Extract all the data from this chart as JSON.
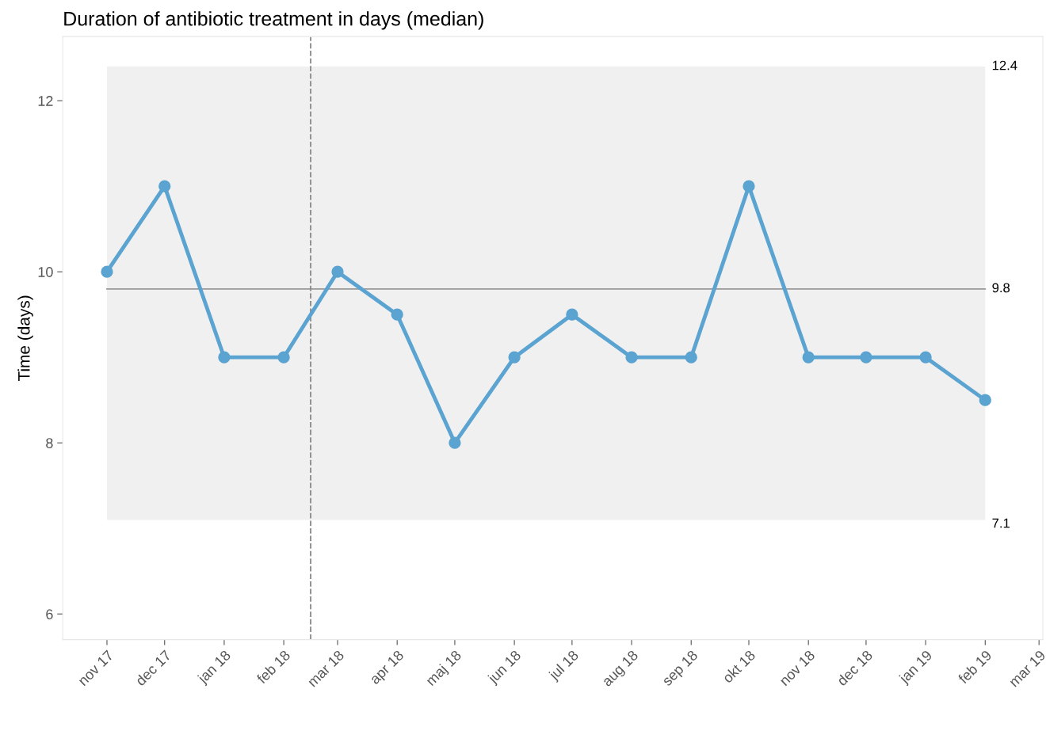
{
  "chart_data": {
    "type": "line",
    "title": "Duration of antibiotic treatment in days (median)",
    "ylabel": "Time (days)",
    "x": [
      "2017-11",
      "2017-12",
      "2018-01",
      "2018-02",
      "2018-03",
      "2018-04",
      "2018-05",
      "2018-06",
      "2018-07",
      "2018-08",
      "2018-09",
      "2018-10",
      "2018-11",
      "2018-12",
      "2019-01",
      "2019-02"
    ],
    "series": [
      {
        "color": "#5ba3d0",
        "values": [
          10,
          11,
          9,
          9,
          10,
          9.5,
          8,
          9,
          9.5,
          9,
          9,
          11,
          9,
          9,
          9,
          8.5
        ]
      }
    ],
    "xlim": [
      "2017-10-09",
      "2019-03-03"
    ],
    "xticks": [
      {
        "value": "2017-11",
        "label": "nov 17"
      },
      {
        "value": "2017-12",
        "label": "dec 17"
      },
      {
        "value": "2018-01",
        "label": "jan 18"
      },
      {
        "value": "2018-02",
        "label": "feb 18"
      },
      {
        "value": "2018-03",
        "label": "mar 18"
      },
      {
        "value": "2018-04",
        "label": "apr 18"
      },
      {
        "value": "2018-05",
        "label": "maj 18"
      },
      {
        "value": "2018-06",
        "label": "jun 18"
      },
      {
        "value": "2018-07",
        "label": "jul 18"
      },
      {
        "value": "2018-08",
        "label": "aug 18"
      },
      {
        "value": "2018-09",
        "label": "sep 18"
      },
      {
        "value": "2018-10",
        "label": "okt 18"
      },
      {
        "value": "2018-11",
        "label": "nov 18"
      },
      {
        "value": "2018-12",
        "label": "dec 18"
      },
      {
        "value": "2019-01",
        "label": "jan 19"
      },
      {
        "value": "2019-02",
        "label": "feb 19"
      },
      {
        "value": "2019-03",
        "label": "mar 19"
      }
    ],
    "ylim": [
      5.7,
      12.75
    ],
    "yticks": [
      6,
      8,
      10,
      12
    ],
    "ref_lines": [
      {
        "axis": "y",
        "value": 9.8,
        "label": "9.8",
        "color": "#999999",
        "line_style": "solid"
      },
      {
        "axis": "x",
        "value": "2018-02-15",
        "color": "#888888",
        "line_style": "dashed"
      }
    ],
    "bands": [
      {
        "axis": "y",
        "from": 7.1,
        "to": 12.4,
        "label": [
          "7.1",
          "12.4"
        ],
        "color": "#f0f0f0"
      }
    ],
    "marker": "circle",
    "line_style": "solid",
    "grid": false,
    "legend": false
  }
}
